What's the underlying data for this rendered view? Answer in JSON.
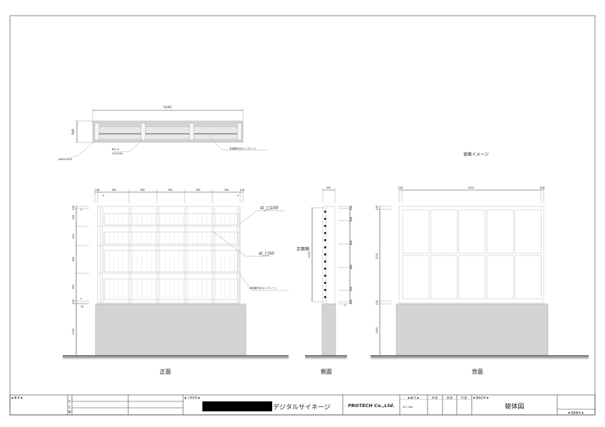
{
  "plan": {
    "width_dim": "5240",
    "depth_dim": "640",
    "anchor_label": "ABOLT-M12",
    "base_plate_label": "BPL-9",
    "base_plate_size": "250*250",
    "bolt_plate_label": "本体取付ボルトプレート"
  },
  "front": {
    "caption": "正面",
    "top_dims": [
      "100",
      "960",
      "960",
      "960",
      "960",
      "960",
      "100"
    ],
    "top_offsets": [
      "5",
      "5"
    ],
    "left_dims": [
      "100",
      "5",
      "640",
      "640",
      "960",
      "960",
      "5",
      "100",
      "10"
    ],
    "base_height": "1700",
    "label_main_post": "st_□100",
    "label_sub_post": "st_□50",
    "label_bolt_plate": "本体取付ボルトプレート"
  },
  "side": {
    "caption": "側面",
    "width_dim": "400",
    "height_dim": "3210",
    "right_dims": [
      "100",
      "508",
      "808",
      "808",
      "508",
      "100"
    ],
    "bottom_offset": "4",
    "front_side_label": "正面側"
  },
  "back": {
    "title": "背面イメージ",
    "caption": "背面",
    "top_dims": [
      "100",
      "4810",
      "100"
    ],
    "left_dims": [
      "100",
      "3210",
      "100"
    ],
    "base_height": "1800"
  },
  "title_block": {
    "remarks_label": "◆ 備 考 ◆",
    "revision_labels": [
      "訂",
      "正",
      "欄"
    ],
    "project_label": "◆ 工事名称 ◆",
    "project_name": "デジタルサイネージ",
    "company": "PROTECH Co.,Ltd.",
    "scale_label": "◆ 縮 尺 ◆",
    "scale_value": "A3: Free",
    "approved_label": "承 認",
    "checked_label": "検 図",
    "drawn_label": "作 図",
    "drawing_name_label": "◆ 図面名称 ◆",
    "drawing_name": "躯体図",
    "drawing_number_label": "◆ 図面番号 ◆"
  }
}
